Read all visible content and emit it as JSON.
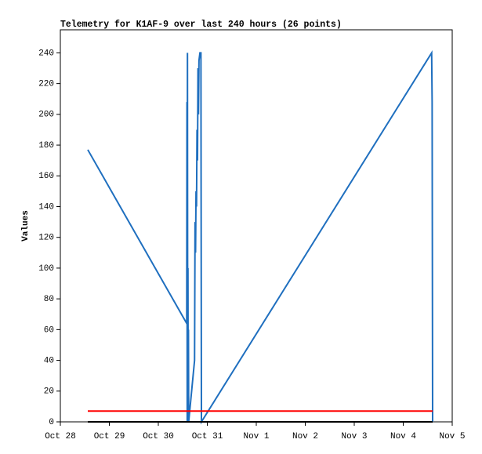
{
  "chart_data": {
    "type": "line",
    "title": "Telemetry for K1AF-9 over last 240 hours (26 points)",
    "y_label": "Values",
    "xlim": [
      0,
      8
    ],
    "ylim": [
      0,
      255
    ],
    "xticks": [
      {
        "value": 0,
        "label": "Oct 28"
      },
      {
        "value": 1,
        "label": "Oct 29"
      },
      {
        "value": 2,
        "label": "Oct 30"
      },
      {
        "value": 3,
        "label": "Oct 31"
      },
      {
        "value": 4,
        "label": "Nov 1"
      },
      {
        "value": 5,
        "label": "Nov 2"
      },
      {
        "value": 6,
        "label": "Nov 3"
      },
      {
        "value": 7,
        "label": "Nov 4"
      },
      {
        "value": 8,
        "label": "Nov 5"
      }
    ],
    "yticks": [
      0,
      20,
      40,
      60,
      80,
      100,
      120,
      140,
      160,
      180,
      200,
      220,
      240
    ],
    "series": [
      {
        "color": "#1f6fbf",
        "x": [
          0.56,
          2.58,
          2.585,
          2.59,
          2.595,
          2.6,
          2.605,
          2.61,
          2.615,
          2.62,
          2.74,
          2.75,
          2.76,
          2.77,
          2.78,
          2.79,
          2.8,
          2.81,
          2.82,
          2.83,
          2.85,
          2.87,
          2.88,
          7.58,
          7.59,
          7.6
        ],
        "values": [
          177,
          64,
          208,
          0,
          240,
          0,
          100,
          0,
          60,
          0,
          40,
          130,
          110,
          150,
          140,
          190,
          170,
          230,
          200,
          235,
          240,
          240,
          0,
          240,
          208,
          0
        ]
      },
      {
        "color": "#ff0000",
        "x": [
          0.56,
          7.6
        ],
        "values": [
          7,
          7
        ]
      },
      {
        "color": "#000000",
        "x": [
          0.56,
          7.6
        ],
        "values": [
          0,
          0
        ]
      }
    ]
  }
}
